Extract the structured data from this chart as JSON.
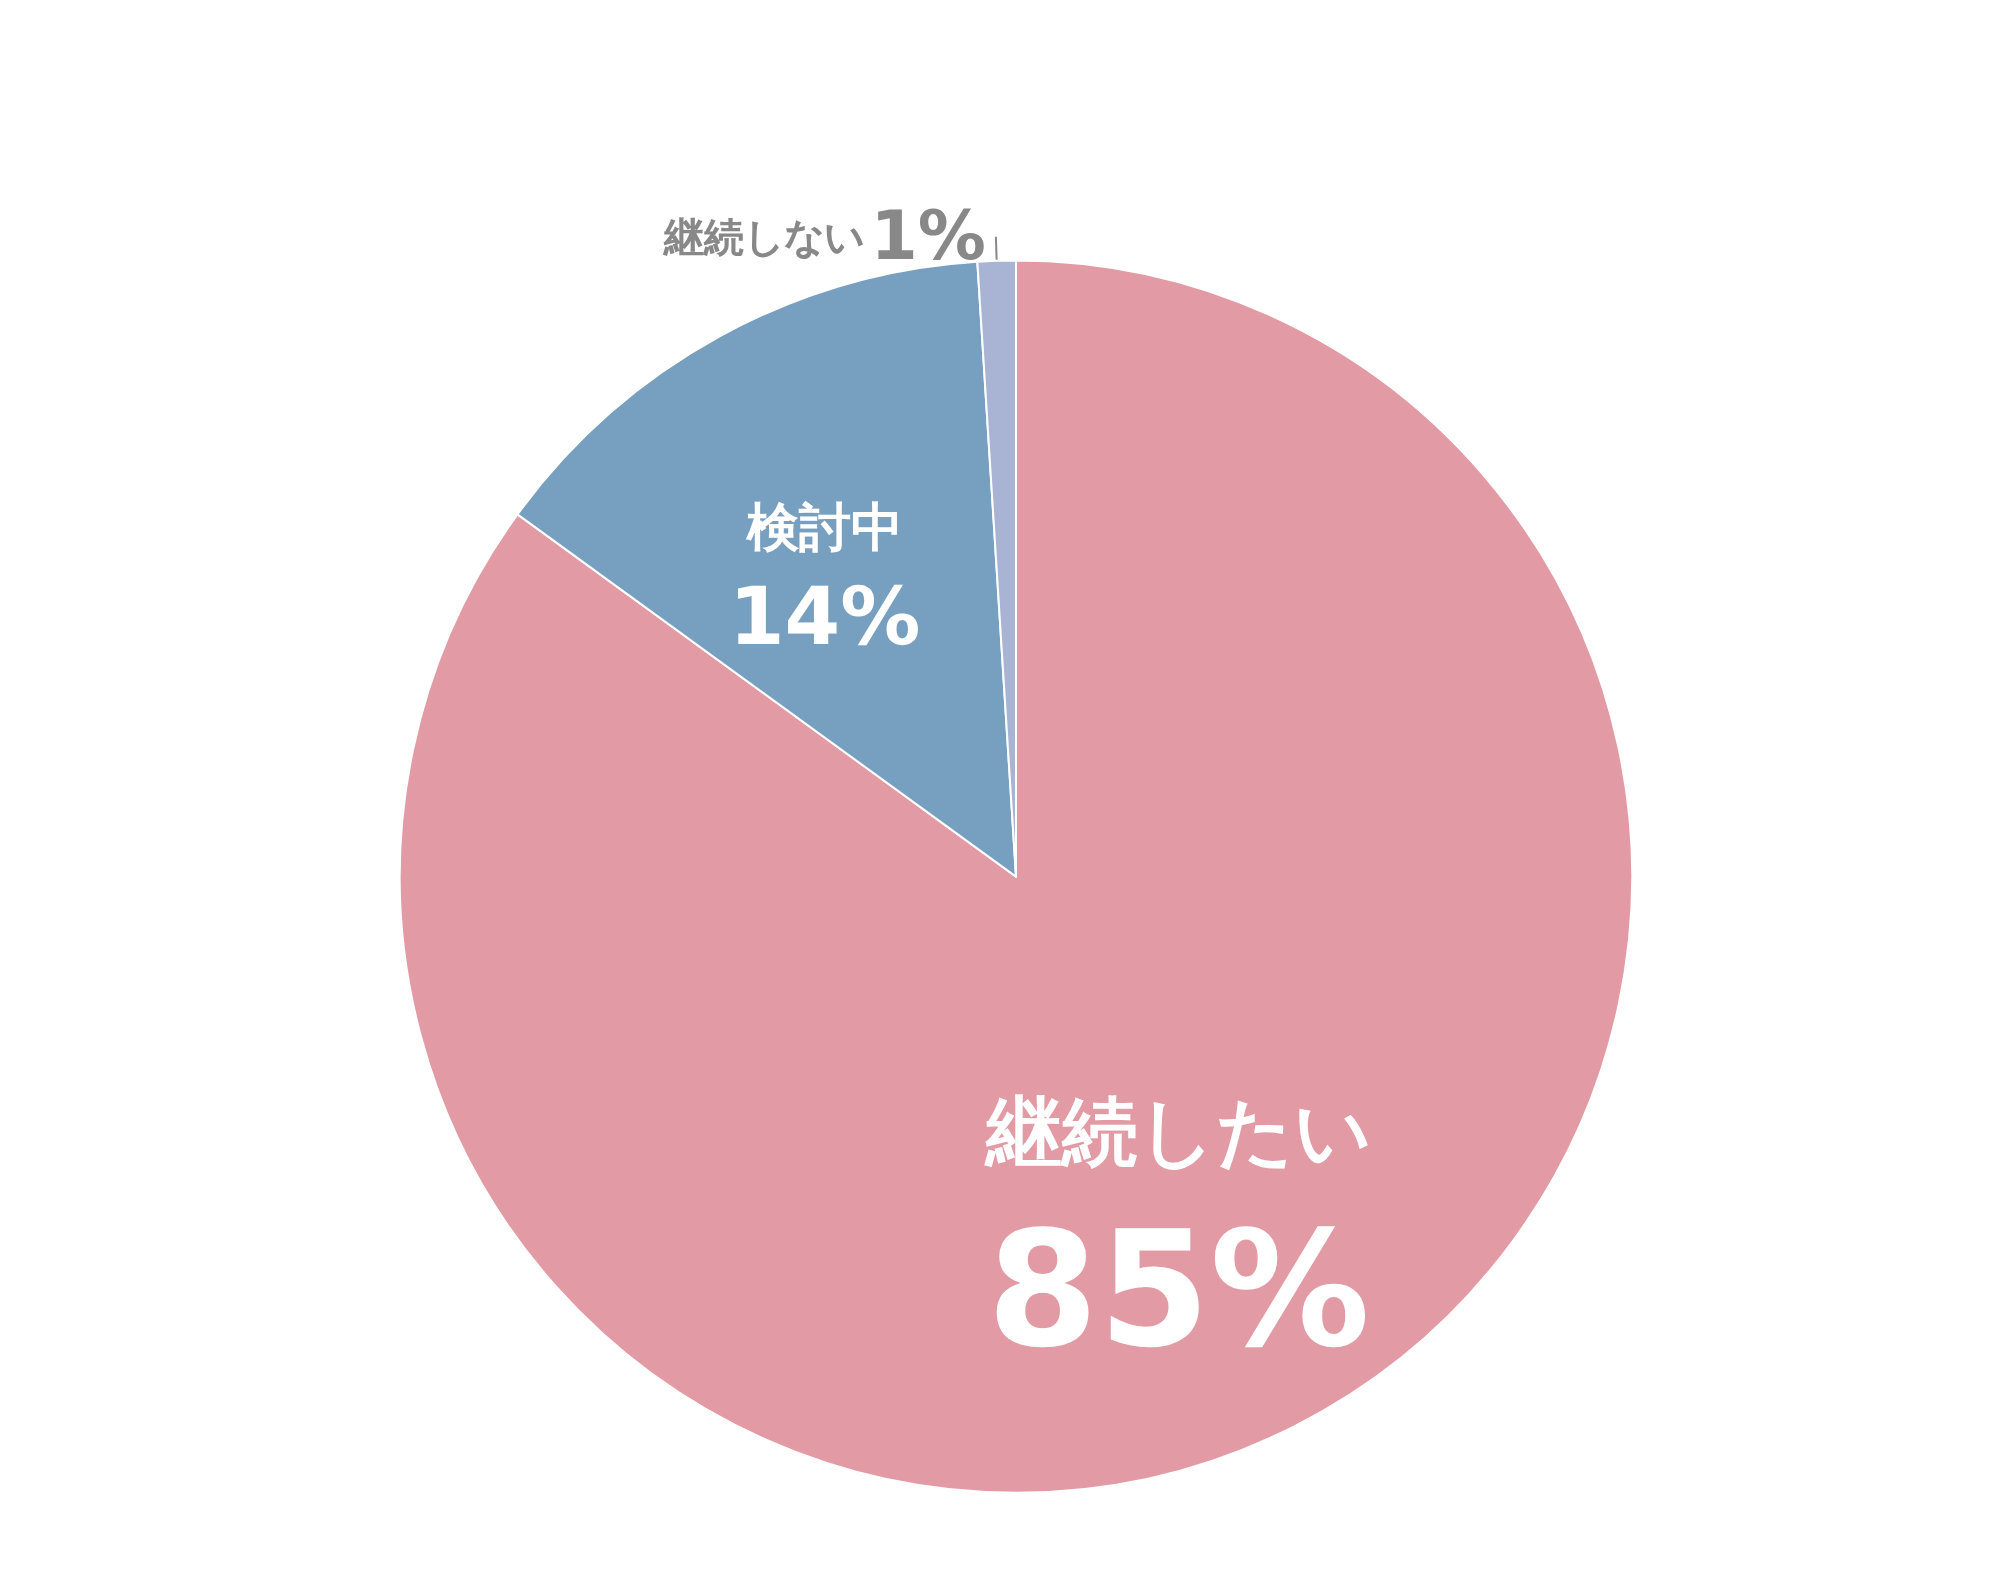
{
  "chart_data": {
    "type": "pie",
    "categories": [
      "継続したい",
      "検討中",
      "継続しない"
    ],
    "values": [
      85,
      14,
      1
    ],
    "colors": [
      "#e29ba4",
      "#779fbf",
      "#a9b3d3"
    ],
    "value_labels": [
      "85%",
      "14%",
      "1%"
    ]
  }
}
